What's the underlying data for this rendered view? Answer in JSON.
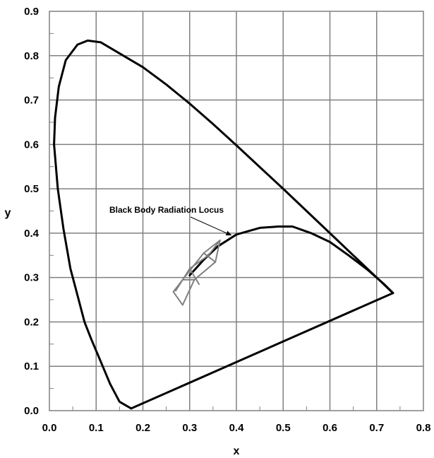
{
  "chart_data": {
    "type": "line",
    "title": "",
    "xlabel": "x",
    "ylabel": "y",
    "xlim": [
      0.0,
      0.8
    ],
    "ylim": [
      0.0,
      0.9
    ],
    "x_ticks": [
      "0.0",
      "0.1",
      "0.2",
      "0.3",
      "0.4",
      "0.5",
      "0.6",
      "0.7",
      "0.8"
    ],
    "y_ticks": [
      "0.0",
      "0.1",
      "0.2",
      "0.3",
      "0.4",
      "0.5",
      "0.6",
      "0.7",
      "0.8",
      "0.9"
    ],
    "grid": true,
    "annotation": {
      "text": "Black Body Radiation Locus",
      "target": [
        0.39,
        0.395
      ]
    },
    "series": [
      {
        "role": "spectral-locus",
        "color": "#000000",
        "points": [
          [
            0.175,
            0.005
          ],
          [
            0.15,
            0.02
          ],
          [
            0.13,
            0.06
          ],
          [
            0.11,
            0.11
          ],
          [
            0.09,
            0.16
          ],
          [
            0.075,
            0.2
          ],
          [
            0.06,
            0.26
          ],
          [
            0.045,
            0.32
          ],
          [
            0.03,
            0.41
          ],
          [
            0.018,
            0.5
          ],
          [
            0.01,
            0.6
          ],
          [
            0.012,
            0.66
          ],
          [
            0.02,
            0.73
          ],
          [
            0.035,
            0.79
          ],
          [
            0.06,
            0.825
          ],
          [
            0.082,
            0.834
          ],
          [
            0.11,
            0.83
          ],
          [
            0.15,
            0.805
          ],
          [
            0.2,
            0.774
          ],
          [
            0.25,
            0.735
          ],
          [
            0.3,
            0.692
          ],
          [
            0.35,
            0.646
          ],
          [
            0.4,
            0.598
          ],
          [
            0.45,
            0.549
          ],
          [
            0.5,
            0.5
          ],
          [
            0.55,
            0.45
          ],
          [
            0.6,
            0.4
          ],
          [
            0.65,
            0.35
          ],
          [
            0.7,
            0.3
          ],
          [
            0.735,
            0.265
          ]
        ]
      },
      {
        "role": "purple-line",
        "color": "#000000",
        "points": [
          [
            0.175,
            0.005
          ],
          [
            0.735,
            0.265
          ]
        ]
      },
      {
        "role": "black-body-locus",
        "color": "#000000",
        "points": [
          [
            0.3,
            0.305
          ],
          [
            0.33,
            0.34
          ],
          [
            0.36,
            0.37
          ],
          [
            0.4,
            0.397
          ],
          [
            0.45,
            0.412
          ],
          [
            0.49,
            0.415
          ],
          [
            0.52,
            0.415
          ],
          [
            0.56,
            0.4
          ],
          [
            0.6,
            0.38
          ],
          [
            0.64,
            0.35
          ],
          [
            0.68,
            0.318
          ],
          [
            0.715,
            0.286
          ],
          [
            0.735,
            0.265
          ]
        ]
      },
      {
        "role": "grid-region-outline",
        "color": "#808080",
        "points": [
          [
            0.265,
            0.268
          ],
          [
            0.285,
            0.295
          ],
          [
            0.33,
            0.355
          ],
          [
            0.365,
            0.384
          ],
          [
            0.355,
            0.335
          ],
          [
            0.31,
            0.295
          ],
          [
            0.285,
            0.238
          ],
          [
            0.265,
            0.268
          ]
        ]
      },
      {
        "role": "grid-region-inner-1",
        "color": "#808080",
        "points": [
          [
            0.285,
            0.295
          ],
          [
            0.31,
            0.295
          ]
        ]
      },
      {
        "role": "grid-region-inner-2",
        "color": "#808080",
        "points": [
          [
            0.33,
            0.355
          ],
          [
            0.355,
            0.335
          ]
        ]
      },
      {
        "role": "grid-region-inner-3",
        "color": "#808080",
        "points": [
          [
            0.27,
            0.27
          ],
          [
            0.3,
            0.32
          ],
          [
            0.34,
            0.35
          ],
          [
            0.365,
            0.384
          ]
        ]
      },
      {
        "role": "grid-region-inner-4",
        "color": "#808080",
        "points": [
          [
            0.3,
            0.32
          ],
          [
            0.32,
            0.285
          ]
        ]
      }
    ]
  }
}
